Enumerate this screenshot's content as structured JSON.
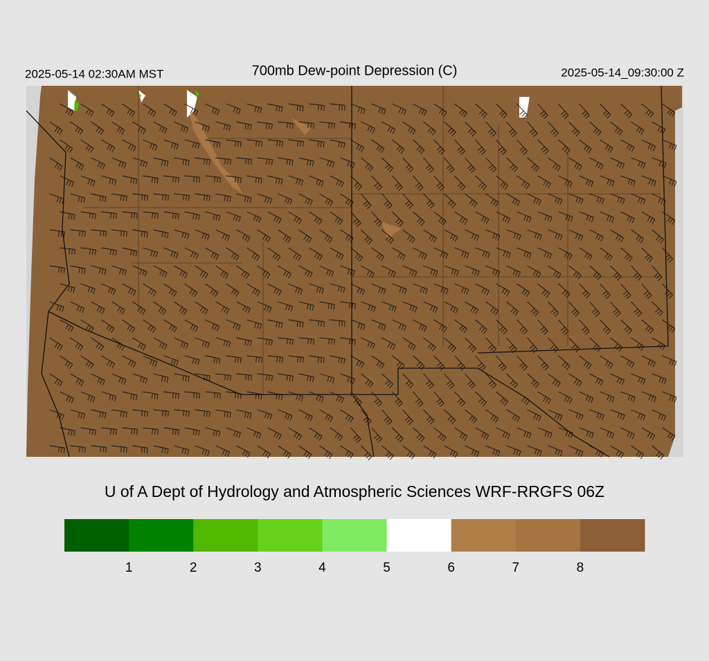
{
  "header": {
    "left": "2025-05-14 02:30AM MST",
    "title": "700mb Dew-point Depression (C)",
    "right": "2025-05-14_09:30:00 Z"
  },
  "footer": {
    "credit": "U of A Dept of Hydrology and Atmospheric Sciences WRF-RRGFS 06Z"
  },
  "colorbar": {
    "colors": [
      "#005f00",
      "#008200",
      "#50b800",
      "#66d01a",
      "#7eea62",
      "#ffffff",
      "#b07d48",
      "#a67440",
      "#8b5e35"
    ],
    "ticks": [
      1,
      2,
      3,
      4,
      5,
      6,
      7,
      8
    ]
  }
}
